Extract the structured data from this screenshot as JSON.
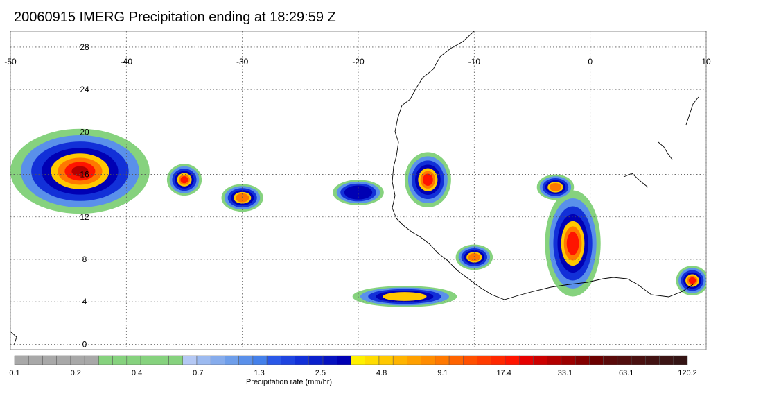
{
  "title": "20060915 IMERG Precipitation ending at 18:29:59 Z",
  "map": {
    "lon_labels": [
      "-50",
      "-40",
      "-30",
      "-20",
      "-10",
      "0",
      "10"
    ],
    "lat_labels": [
      "28",
      "24",
      "20",
      "16",
      "12",
      "8",
      "4",
      "0"
    ],
    "lon_range": [
      -50,
      10
    ],
    "lat_range": [
      -0.5,
      29.5
    ],
    "grid": "dotted"
  },
  "colorbar": {
    "label": "Precipitation rate (mm/hr)",
    "tick_labels": [
      "0.1",
      "0.2",
      "0.4",
      "0.7",
      "1.3",
      "2.5",
      "4.8",
      "9.1",
      "17.4",
      "33.1",
      "63.1",
      "120.2"
    ],
    "colors": [
      "#a8a8a8",
      "#a8a8a8",
      "#a8a8a8",
      "#a8a8a8",
      "#a8a8a8",
      "#a8a8a8",
      "#86d27e",
      "#86d27e",
      "#86d27e",
      "#86d27e",
      "#86d27e",
      "#86d27e",
      "#b4c8f4",
      "#9cbaf0",
      "#86acec",
      "#6e9eea",
      "#5a90ea",
      "#4480ea",
      "#2a58e8",
      "#1e44e0",
      "#1230d8",
      "#0a20cc",
      "#0612c0",
      "#0000b4",
      "#fff000",
      "#ffdc00",
      "#ffc800",
      "#ffb400",
      "#ffa000",
      "#ff8c00",
      "#ff7800",
      "#ff6400",
      "#ff5000",
      "#ff3c00",
      "#ff2800",
      "#ff1400",
      "#e60000",
      "#cc0000",
      "#b40000",
      "#9c0000",
      "#840000",
      "#6c0000",
      "#5a0a0a",
      "#520e0e",
      "#4a1010",
      "#421212",
      "#3c1414",
      "#341414"
    ]
  },
  "precip_cells": [
    {
      "name": "hurricane-helene",
      "lon": -44,
      "lat": 16.3,
      "rx": 6,
      "ry": 4,
      "peak": 12
    },
    {
      "name": "cell-west-1",
      "lon": -35,
      "lat": 15.5,
      "rx": 1.5,
      "ry": 1.5,
      "peak": 10
    },
    {
      "name": "cell-west-2",
      "lon": -30,
      "lat": 13.8,
      "rx": 1.8,
      "ry": 1.3,
      "peak": 9
    },
    {
      "name": "cell-mid-1",
      "lon": -20,
      "lat": 14.3,
      "rx": 2.2,
      "ry": 1.2,
      "peak": 6
    },
    {
      "name": "cell-coast-1",
      "lon": -14,
      "lat": 15.5,
      "rx": 2.0,
      "ry": 2.6,
      "peak": 10
    },
    {
      "name": "cell-guinea-1",
      "lon": -10,
      "lat": 8.2,
      "rx": 1.6,
      "ry": 1.2,
      "peak": 9
    },
    {
      "name": "cell-ghana-1",
      "lon": -1.5,
      "lat": 9.5,
      "rx": 2.4,
      "ry": 5.0,
      "peak": 11
    },
    {
      "name": "cell-gulf-1",
      "lon": -16,
      "lat": 4.5,
      "rx": 4.5,
      "ry": 1.0,
      "peak": 8
    },
    {
      "name": "cell-sahel-1",
      "lon": -3,
      "lat": 14.8,
      "rx": 1.6,
      "ry": 1.2,
      "peak": 9
    },
    {
      "name": "cell-east-1",
      "lon": 8.8,
      "lat": 6.0,
      "rx": 1.4,
      "ry": 1.4,
      "peak": 10
    }
  ]
}
